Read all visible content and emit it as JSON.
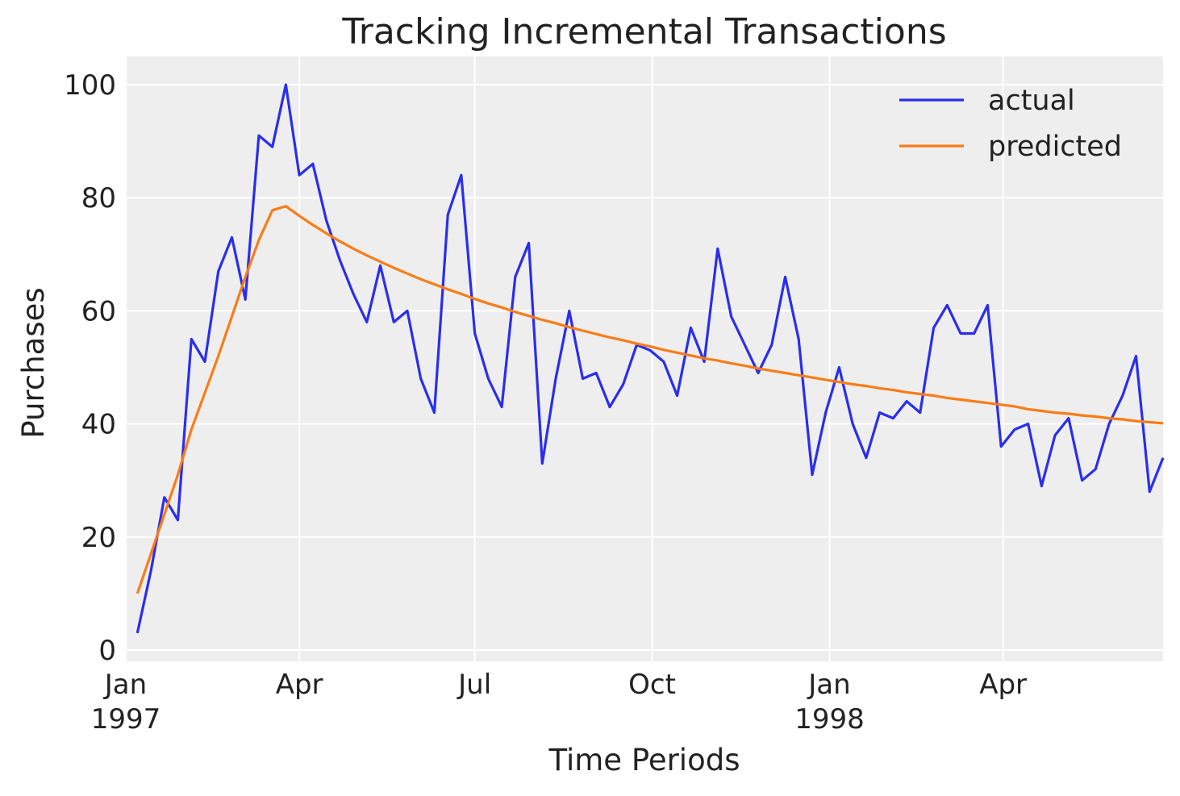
{
  "chart_data": {
    "type": "line",
    "title": "Tracking Incremental Transactions",
    "xlabel": "Time Periods",
    "ylabel": "Purchases",
    "ylim": [
      -2,
      105
    ],
    "xlim": [
      "1997-01-01",
      "1998-06-23"
    ],
    "yticks": [
      0,
      20,
      40,
      60,
      80,
      100
    ],
    "xticks": [
      {
        "date": "1997-01-01",
        "label": "Jan",
        "sublabel": "1997"
      },
      {
        "date": "1997-04-01",
        "label": "Apr",
        "sublabel": ""
      },
      {
        "date": "1997-07-01",
        "label": "Jul",
        "sublabel": ""
      },
      {
        "date": "1997-10-01",
        "label": "Oct",
        "sublabel": ""
      },
      {
        "date": "1998-01-01",
        "label": "Jan",
        "sublabel": "1998"
      },
      {
        "date": "1998-04-01",
        "label": "Apr",
        "sublabel": ""
      }
    ],
    "grid": true,
    "legend_position": "top-right",
    "background": "#eeeeee",
    "x": [
      "1997-01-07",
      "1997-01-14",
      "1997-01-21",
      "1997-01-28",
      "1997-02-04",
      "1997-02-11",
      "1997-02-18",
      "1997-02-25",
      "1997-03-04",
      "1997-03-11",
      "1997-03-18",
      "1997-03-25",
      "1997-04-01",
      "1997-04-08",
      "1997-04-15",
      "1997-04-22",
      "1997-04-29",
      "1997-05-06",
      "1997-05-13",
      "1997-05-20",
      "1997-05-27",
      "1997-06-03",
      "1997-06-10",
      "1997-06-17",
      "1997-06-24",
      "1997-07-01",
      "1997-07-08",
      "1997-07-15",
      "1997-07-22",
      "1997-07-29",
      "1997-08-05",
      "1997-08-12",
      "1997-08-19",
      "1997-08-26",
      "1997-09-02",
      "1997-09-09",
      "1997-09-16",
      "1997-09-23",
      "1997-09-30",
      "1997-10-07",
      "1997-10-14",
      "1997-10-21",
      "1997-10-28",
      "1997-11-04",
      "1997-11-11",
      "1997-11-18",
      "1997-11-25",
      "1997-12-02",
      "1997-12-09",
      "1997-12-16",
      "1997-12-23",
      "1997-12-30",
      "1998-01-06",
      "1998-01-13",
      "1998-01-20",
      "1998-01-27",
      "1998-02-03",
      "1998-02-10",
      "1998-02-17",
      "1998-02-24",
      "1998-03-03",
      "1998-03-10",
      "1998-03-17",
      "1998-03-24",
      "1998-03-31",
      "1998-04-07",
      "1998-04-14",
      "1998-04-21",
      "1998-04-28",
      "1998-05-05",
      "1998-05-12",
      "1998-05-19",
      "1998-05-26",
      "1998-06-02",
      "1998-06-09",
      "1998-06-16",
      "1998-06-23"
    ],
    "series": [
      {
        "name": "actual",
        "color": "#2a2eec",
        "values": [
          3,
          14,
          27,
          23,
          55,
          51,
          67,
          73,
          62,
          91,
          89,
          100,
          84,
          86,
          76,
          69,
          63,
          58,
          68,
          58,
          60,
          48,
          42,
          77,
          84,
          56,
          48,
          43,
          66,
          72,
          33,
          48,
          60,
          48,
          49,
          43,
          47,
          54,
          53,
          51,
          45,
          57,
          51,
          71,
          59,
          54,
          49,
          54,
          66,
          55,
          31,
          42,
          50,
          40,
          34,
          42,
          41,
          44,
          42,
          57,
          61,
          56,
          56,
          61,
          36,
          39,
          40,
          29,
          38,
          41,
          30,
          32,
          40,
          45,
          52,
          28,
          34
        ]
      },
      {
        "name": "predicted",
        "color": "#fa7c17",
        "values": [
          10,
          17,
          24,
          31,
          39,
          45.5,
          52,
          59,
          66,
          72.5,
          77.8,
          78.5,
          76.8,
          75.2,
          73.7,
          72.3,
          71,
          69.8,
          68.7,
          67.6,
          66.6,
          65.6,
          64.7,
          63.8,
          63,
          62.1,
          61.3,
          60.6,
          59.8,
          59.1,
          58.4,
          57.8,
          57.1,
          56.5,
          55.9,
          55.3,
          54.8,
          54.2,
          53.7,
          53.1,
          52.6,
          52.1,
          51.6,
          51.2,
          50.7,
          50.3,
          49.8,
          49.4,
          49,
          48.6,
          48.2,
          47.8,
          47.4,
          47,
          46.7,
          46.3,
          46,
          45.6,
          45.3,
          45,
          44.6,
          44.3,
          44,
          43.7,
          43.4,
          43.1,
          42.6,
          42.3,
          42,
          41.8,
          41.5,
          41.3,
          41,
          40.8,
          40.5,
          40.3,
          40.1
        ]
      }
    ]
  }
}
